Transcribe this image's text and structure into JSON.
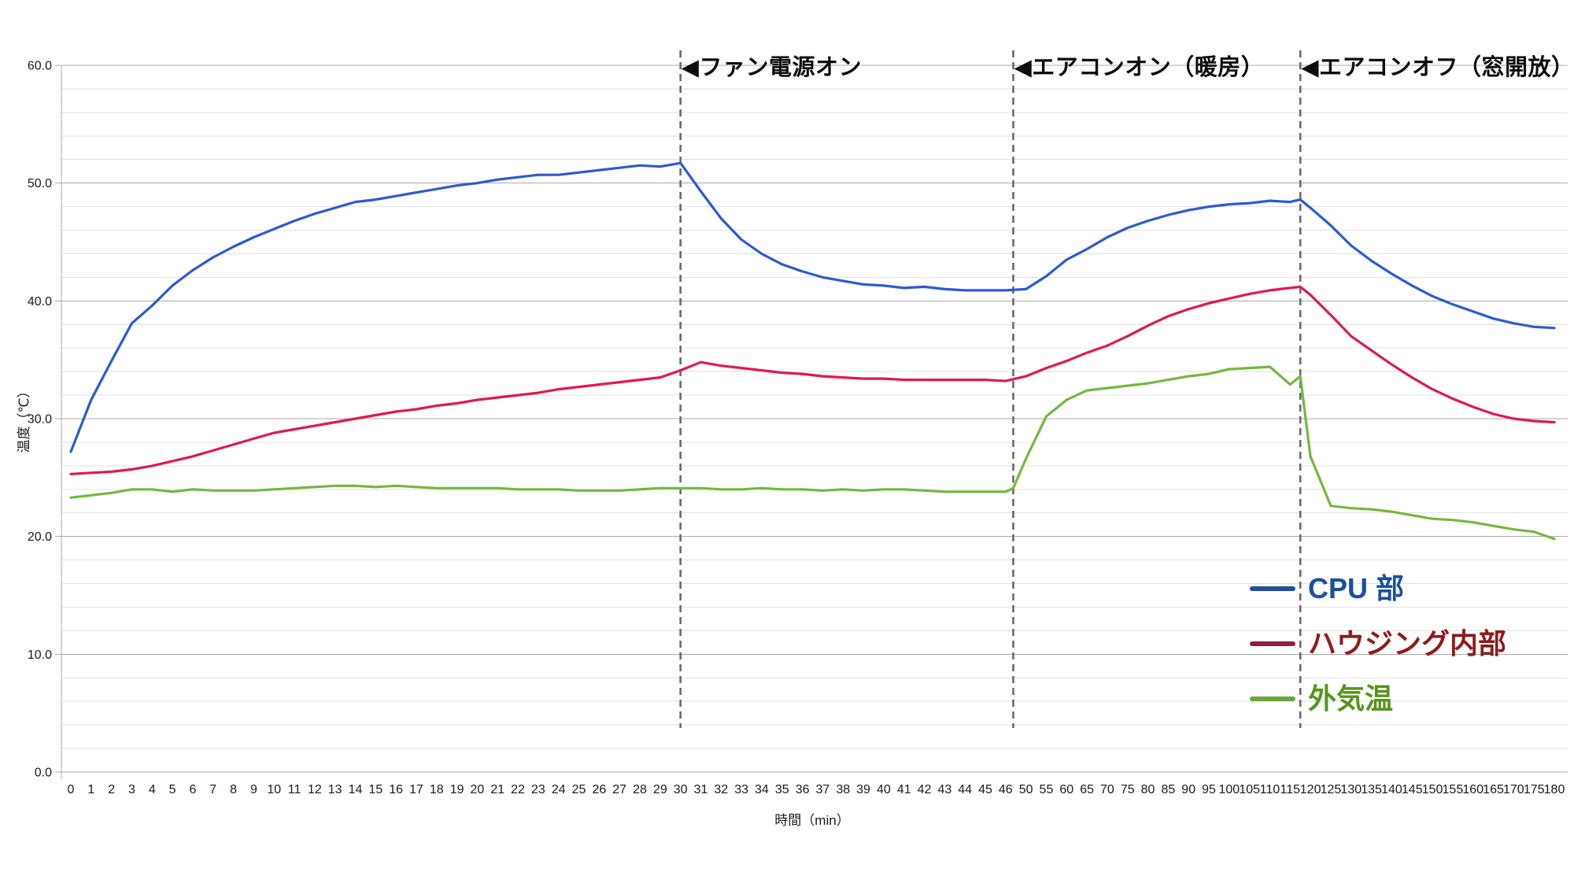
{
  "chart_data": {
    "type": "line",
    "ylabel": "温度（℃）",
    "xlabel": "時間（min）",
    "ylim": [
      0,
      60
    ],
    "y_major_step": 10,
    "y_minor_step": 2,
    "y_tick_labels": [
      "60.0",
      "50.0",
      "40.0",
      "30.0",
      "20.0",
      "10.0",
      "0.0"
    ],
    "grid": "on",
    "legend_position": "right-lower",
    "x_categories": [
      "0",
      "1",
      "2",
      "3",
      "4",
      "5",
      "6",
      "7",
      "8",
      "9",
      "10",
      "11",
      "12",
      "13",
      "14",
      "15",
      "16",
      "17",
      "18",
      "19",
      "20",
      "21",
      "22",
      "23",
      "24",
      "25",
      "26",
      "27",
      "28",
      "29",
      "30",
      "31",
      "32",
      "33",
      "34",
      "35",
      "36",
      "37",
      "38",
      "39",
      "40",
      "41",
      "42",
      "43",
      "44",
      "45",
      "46",
      "50",
      "55",
      "60",
      "65",
      "70",
      "75",
      "80",
      "85",
      "90",
      "95",
      "100",
      "105",
      "110",
      "115",
      "120",
      "125",
      "130",
      "135",
      "140",
      "145",
      "150",
      "155",
      "160",
      "165",
      "170",
      "175",
      "180"
    ],
    "series": [
      {
        "name": "CPU 部",
        "color": "#2d5bd1",
        "legend_text_color": "#1c4fa0",
        "legend_line_color": "#1c4fa0",
        "points": [
          [
            0,
            27.2
          ],
          [
            1,
            31.6
          ],
          [
            2,
            34.9
          ],
          [
            3,
            38.1
          ],
          [
            4,
            39.6
          ],
          [
            5,
            41.3
          ],
          [
            6,
            42.6
          ],
          [
            7,
            43.7
          ],
          [
            8,
            44.6
          ],
          [
            9,
            45.4
          ],
          [
            10,
            46.1
          ],
          [
            11,
            46.8
          ],
          [
            12,
            47.4
          ],
          [
            13,
            47.9
          ],
          [
            14,
            48.4
          ],
          [
            15,
            48.6
          ],
          [
            16,
            48.9
          ],
          [
            17,
            49.2
          ],
          [
            18,
            49.5
          ],
          [
            19,
            49.8
          ],
          [
            20,
            50.0
          ],
          [
            21,
            50.3
          ],
          [
            22,
            50.5
          ],
          [
            23,
            50.7
          ],
          [
            24,
            50.7
          ],
          [
            25,
            50.9
          ],
          [
            26,
            51.1
          ],
          [
            27,
            51.3
          ],
          [
            28,
            51.5
          ],
          [
            29,
            51.4
          ],
          [
            30,
            51.7
          ],
          [
            31,
            49.3
          ],
          [
            32,
            47.0
          ],
          [
            33,
            45.2
          ],
          [
            34,
            44.0
          ],
          [
            35,
            43.1
          ],
          [
            36,
            42.5
          ],
          [
            37,
            42.0
          ],
          [
            38,
            41.7
          ],
          [
            39,
            41.4
          ],
          [
            40,
            41.3
          ],
          [
            41,
            41.1
          ],
          [
            42,
            41.2
          ],
          [
            43,
            41.0
          ],
          [
            44,
            40.9
          ],
          [
            45,
            40.9
          ],
          [
            46,
            40.9
          ],
          [
            50,
            41.0
          ],
          [
            55,
            42.1
          ],
          [
            60,
            43.5
          ],
          [
            65,
            44.4
          ],
          [
            70,
            45.4
          ],
          [
            75,
            46.2
          ],
          [
            80,
            46.8
          ],
          [
            85,
            47.3
          ],
          [
            90,
            47.7
          ],
          [
            95,
            48.0
          ],
          [
            100,
            48.2
          ],
          [
            105,
            48.3
          ],
          [
            110,
            48.5
          ],
          [
            115,
            48.4
          ],
          [
            117.5,
            48.6
          ],
          [
            120,
            47.9
          ],
          [
            125,
            46.4
          ],
          [
            130,
            44.7
          ],
          [
            135,
            43.4
          ],
          [
            140,
            42.3
          ],
          [
            145,
            41.3
          ],
          [
            150,
            40.4
          ],
          [
            155,
            39.7
          ],
          [
            160,
            39.1
          ],
          [
            165,
            38.5
          ],
          [
            170,
            38.1
          ],
          [
            175,
            37.8
          ],
          [
            180,
            37.7
          ]
        ]
      },
      {
        "name": "ハウジング内部",
        "color": "#e01a4b",
        "legend_text_color": "#8e1b1b",
        "legend_line_color": "#8e2047",
        "points": [
          [
            0,
            25.3
          ],
          [
            1,
            25.4
          ],
          [
            2,
            25.5
          ],
          [
            3,
            25.7
          ],
          [
            4,
            26.0
          ],
          [
            5,
            26.4
          ],
          [
            6,
            26.8
          ],
          [
            7,
            27.3
          ],
          [
            8,
            27.8
          ],
          [
            9,
            28.3
          ],
          [
            10,
            28.8
          ],
          [
            11,
            29.1
          ],
          [
            12,
            29.4
          ],
          [
            13,
            29.7
          ],
          [
            14,
            30.0
          ],
          [
            15,
            30.3
          ],
          [
            16,
            30.6
          ],
          [
            17,
            30.8
          ],
          [
            18,
            31.1
          ],
          [
            19,
            31.3
          ],
          [
            20,
            31.6
          ],
          [
            21,
            31.8
          ],
          [
            22,
            32.0
          ],
          [
            23,
            32.2
          ],
          [
            24,
            32.5
          ],
          [
            25,
            32.7
          ],
          [
            26,
            32.9
          ],
          [
            27,
            33.1
          ],
          [
            28,
            33.3
          ],
          [
            29,
            33.5
          ],
          [
            30,
            34.1
          ],
          [
            31,
            34.8
          ],
          [
            32,
            34.5
          ],
          [
            33,
            34.3
          ],
          [
            34,
            34.1
          ],
          [
            35,
            33.9
          ],
          [
            36,
            33.8
          ],
          [
            37,
            33.6
          ],
          [
            38,
            33.5
          ],
          [
            39,
            33.4
          ],
          [
            40,
            33.4
          ],
          [
            41,
            33.3
          ],
          [
            42,
            33.3
          ],
          [
            43,
            33.3
          ],
          [
            44,
            33.3
          ],
          [
            45,
            33.3
          ],
          [
            46,
            33.2
          ],
          [
            50,
            33.6
          ],
          [
            55,
            34.3
          ],
          [
            60,
            34.9
          ],
          [
            65,
            35.6
          ],
          [
            70,
            36.2
          ],
          [
            75,
            37.0
          ],
          [
            80,
            37.9
          ],
          [
            85,
            38.7
          ],
          [
            90,
            39.3
          ],
          [
            95,
            39.8
          ],
          [
            100,
            40.2
          ],
          [
            105,
            40.6
          ],
          [
            110,
            40.9
          ],
          [
            115,
            41.1
          ],
          [
            117.5,
            41.2
          ],
          [
            120,
            40.5
          ],
          [
            125,
            38.8
          ],
          [
            130,
            37.0
          ],
          [
            135,
            35.8
          ],
          [
            140,
            34.6
          ],
          [
            145,
            33.5
          ],
          [
            150,
            32.5
          ],
          [
            155,
            31.7
          ],
          [
            160,
            31.0
          ],
          [
            165,
            30.4
          ],
          [
            170,
            30.0
          ],
          [
            175,
            29.8
          ],
          [
            180,
            29.7
          ]
        ]
      },
      {
        "name": "外気温",
        "color": "#76b73e",
        "legend_text_color": "#55951d",
        "legend_line_color": "#6da639",
        "points": [
          [
            0,
            23.3
          ],
          [
            1,
            23.5
          ],
          [
            2,
            23.7
          ],
          [
            3,
            24.0
          ],
          [
            4,
            24.0
          ],
          [
            5,
            23.8
          ],
          [
            6,
            24.0
          ],
          [
            7,
            23.9
          ],
          [
            8,
            23.9
          ],
          [
            9,
            23.9
          ],
          [
            10,
            24.0
          ],
          [
            11,
            24.1
          ],
          [
            12,
            24.2
          ],
          [
            13,
            24.3
          ],
          [
            14,
            24.3
          ],
          [
            15,
            24.2
          ],
          [
            16,
            24.3
          ],
          [
            17,
            24.2
          ],
          [
            18,
            24.1
          ],
          [
            19,
            24.1
          ],
          [
            20,
            24.1
          ],
          [
            21,
            24.1
          ],
          [
            22,
            24.0
          ],
          [
            23,
            24.0
          ],
          [
            24,
            24.0
          ],
          [
            25,
            23.9
          ],
          [
            26,
            23.9
          ],
          [
            27,
            23.9
          ],
          [
            28,
            24.0
          ],
          [
            29,
            24.1
          ],
          [
            30,
            24.1
          ],
          [
            31,
            24.1
          ],
          [
            32,
            24.0
          ],
          [
            33,
            24.0
          ],
          [
            34,
            24.1
          ],
          [
            35,
            24.0
          ],
          [
            36,
            24.0
          ],
          [
            37,
            23.9
          ],
          [
            38,
            24.0
          ],
          [
            39,
            23.9
          ],
          [
            40,
            24.0
          ],
          [
            41,
            24.0
          ],
          [
            42,
            23.9
          ],
          [
            43,
            23.8
          ],
          [
            44,
            23.8
          ],
          [
            45,
            23.8
          ],
          [
            46,
            23.8
          ],
          [
            47.5,
            24.1
          ],
          [
            50,
            26.6
          ],
          [
            55,
            30.2
          ],
          [
            60,
            31.6
          ],
          [
            65,
            32.4
          ],
          [
            70,
            32.6
          ],
          [
            75,
            32.8
          ],
          [
            80,
            33.0
          ],
          [
            85,
            33.3
          ],
          [
            90,
            33.6
          ],
          [
            95,
            33.8
          ],
          [
            100,
            34.2
          ],
          [
            105,
            34.3
          ],
          [
            110,
            34.4
          ],
          [
            115,
            32.9
          ],
          [
            117.5,
            33.6
          ],
          [
            120,
            26.8
          ],
          [
            125,
            22.6
          ],
          [
            130,
            22.4
          ],
          [
            135,
            22.3
          ],
          [
            140,
            22.1
          ],
          [
            145,
            21.8
          ],
          [
            150,
            21.5
          ],
          [
            155,
            21.4
          ],
          [
            160,
            21.2
          ],
          [
            165,
            20.9
          ],
          [
            170,
            20.6
          ],
          [
            175,
            20.4
          ],
          [
            180,
            19.8
          ]
        ]
      }
    ],
    "events": [
      {
        "label": "◀ファン電源オン",
        "minute": 30
      },
      {
        "label": "◀エアコンオン（暖房）",
        "minute": 47.5
      },
      {
        "label": "◀エアコンオフ（窓開放）",
        "minute": 117.5
      }
    ]
  }
}
